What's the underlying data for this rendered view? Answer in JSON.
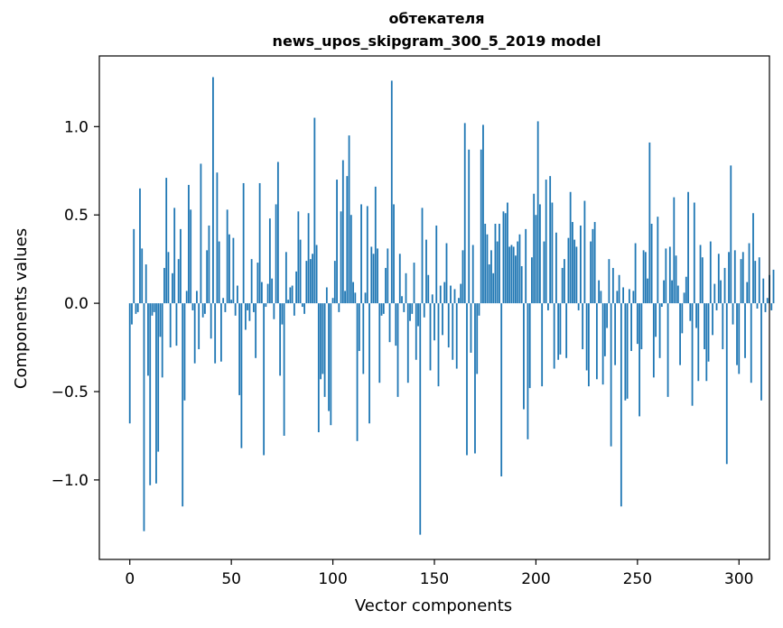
{
  "chart_data": {
    "type": "bar",
    "title": "обтекателя\nnews_upos_skipgram_300_5_2019 model",
    "title_lines": [
      "обтекателя",
      "news_upos_skipgram_300_5_2019 model"
    ],
    "xlabel": "Vector components",
    "ylabel": "Components values",
    "xlim": [
      -15,
      315
    ],
    "ylim": [
      -1.45,
      1.4
    ],
    "xticks": [
      0,
      50,
      100,
      150,
      200,
      250,
      300
    ],
    "xtick_labels": [
      "0",
      "50",
      "100",
      "150",
      "200",
      "250",
      "300"
    ],
    "yticks": [
      -1.0,
      -0.5,
      0.0,
      0.5,
      1.0
    ],
    "ytick_labels": [
      "−1.0",
      "−0.5",
      "0.0",
      "0.5",
      "1.0"
    ],
    "grid": false,
    "bar_color": "#1f77b4",
    "values": [
      -0.68,
      -0.12,
      0.42,
      -0.06,
      -0.05,
      0.65,
      0.31,
      -1.29,
      0.22,
      -0.41,
      -1.03,
      -0.07,
      -0.05,
      -1.02,
      -0.84,
      -0.19,
      -0.42,
      0.2,
      0.71,
      0.29,
      -0.25,
      0.17,
      0.54,
      -0.24,
      0.25,
      0.42,
      -1.15,
      -0.55,
      0.07,
      0.67,
      0.53,
      -0.04,
      -0.34,
      0.07,
      -0.26,
      0.79,
      -0.08,
      -0.06,
      0.3,
      0.44,
      -0.2,
      1.28,
      -0.34,
      0.74,
      0.35,
      -0.33,
      0.03,
      -0.05,
      0.53,
      0.39,
      0.02,
      0.37,
      -0.07,
      0.1,
      -0.52,
      -0.82,
      0.68,
      -0.15,
      -0.04,
      -0.1,
      0.25,
      -0.05,
      -0.31,
      0.23,
      0.68,
      0.12,
      -0.86,
      -0.02,
      0.11,
      0.48,
      0.14,
      -0.09,
      0.56,
      0.8,
      -0.41,
      -0.12,
      -0.75,
      0.29,
      0.02,
      0.09,
      0.1,
      -0.07,
      0.18,
      0.52,
      0.36,
      -0.02,
      -0.06,
      0.24,
      0.51,
      0.25,
      0.28,
      1.05,
      0.33,
      -0.73,
      -0.43,
      -0.4,
      -0.53,
      0.09,
      -0.61,
      -0.69,
      0.03,
      0.24,
      0.7,
      -0.05,
      0.52,
      0.81,
      0.07,
      0.72,
      0.95,
      0.5,
      0.12,
      0.06,
      -0.78,
      -0.27,
      0.56,
      -0.4,
      0.06,
      0.55,
      -0.68,
      0.32,
      0.28,
      0.66,
      0.31,
      -0.45,
      -0.07,
      -0.06,
      0.2,
      0.31,
      -0.22,
      1.26,
      0.56,
      -0.24,
      -0.53,
      0.28,
      0.04,
      -0.05,
      0.17,
      -0.45,
      -0.1,
      -0.06,
      0.23,
      -0.32,
      -0.13,
      -1.31,
      0.54,
      -0.08,
      0.36,
      0.16,
      -0.38,
      0.05,
      -0.21,
      0.44,
      -0.47,
      0.1,
      -0.18,
      0.12,
      0.34,
      -0.25,
      0.1,
      -0.32,
      0.08,
      -0.37,
      0.03,
      0.11,
      0.3,
      1.02,
      -0.86,
      0.87,
      -0.28,
      0.33,
      -0.85,
      -0.4,
      -0.07,
      0.87,
      1.01,
      0.45,
      0.39,
      0.22,
      0.3,
      0.17,
      0.45,
      0.35,
      0.45,
      -0.98,
      0.52,
      0.51,
      0.57,
      0.32,
      0.33,
      0.32,
      0.27,
      0.35,
      0.39,
      0.21,
      -0.6,
      0.42,
      -0.77,
      -0.48,
      0.26,
      0.62,
      0.5,
      1.03,
      0.56,
      -0.47,
      0.35,
      0.7,
      -0.04,
      0.72,
      0.57,
      -0.37,
      0.4,
      -0.32,
      -0.29,
      0.2,
      0.25,
      -0.31,
      0.37,
      0.63,
      0.46,
      0.36,
      0.32,
      -0.04,
      0.44,
      -0.26,
      0.58,
      -0.38,
      -0.47,
      0.35,
      0.42,
      0.46,
      -0.43,
      0.13,
      0.07,
      -0.46,
      -0.3,
      -0.14,
      0.25,
      -0.81,
      0.2,
      -0.35,
      0.07,
      0.16,
      -1.15,
      0.09,
      -0.55,
      -0.54,
      0.08,
      -0.27,
      0.07,
      0.34,
      -0.23,
      -0.64,
      -0.26,
      0.3,
      0.29,
      0.14,
      0.91,
      0.45,
      -0.42,
      -0.19,
      0.49,
      -0.31,
      -0.02,
      0.13,
      0.31,
      -0.53,
      0.32,
      0.13,
      0.6,
      0.27,
      0.1,
      -0.35,
      -0.17,
      0.06,
      0.15,
      0.63,
      -0.1,
      -0.58,
      0.57,
      -0.14,
      -0.44,
      0.33,
      0.26,
      -0.26,
      -0.44,
      -0.33,
      0.35,
      -0.18,
      0.11,
      -0.04,
      0.28,
      0.13,
      -0.26,
      0.2,
      -0.91,
      0.29,
      0.78,
      -0.12,
      0.3,
      -0.35,
      -0.4,
      0.25,
      0.29,
      -0.31,
      0.12,
      0.34,
      -0.45,
      0.51,
      0.24,
      -0.03,
      0.26,
      -0.55,
      0.14,
      -0.05,
      0.03,
      0.16,
      -0.04,
      0.19
    ]
  }
}
